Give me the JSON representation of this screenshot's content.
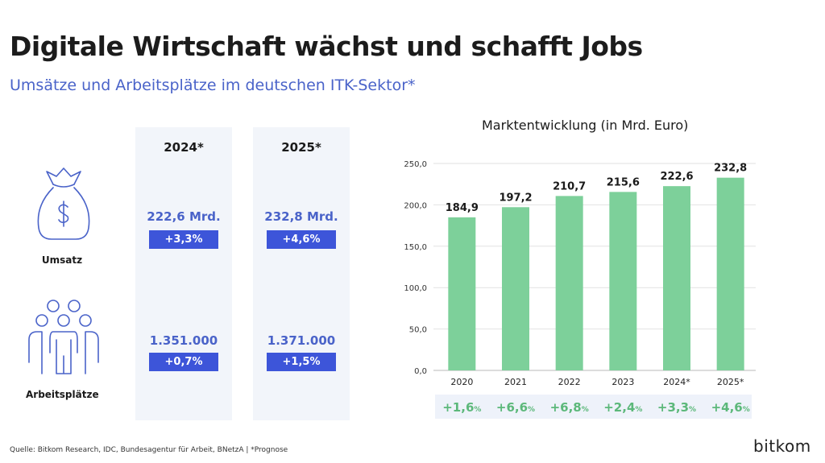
{
  "title": "Digitale Wirtschaft wächst und schafft Jobs",
  "subtitle": "Umsätze und Arbeitsplätze im deutschen ITK-Sektor*",
  "table": {
    "columns": [
      "2024*",
      "2025*"
    ],
    "rows": [
      {
        "label": "Umsatz",
        "values": [
          "222,6 Mrd.",
          "232,8 Mrd."
        ],
        "changes": [
          "+3,3%",
          "+4,6%"
        ]
      },
      {
        "label": "Arbeitsplätze",
        "values": [
          "1.351.000",
          "1.371.000"
        ],
        "changes": [
          "+0,7%",
          "+1,5%"
        ]
      }
    ]
  },
  "chart_data": {
    "type": "bar",
    "title": "Marktentwicklung (in Mrd. Euro)",
    "categories": [
      "2020",
      "2021",
      "2022",
      "2023",
      "2024*",
      "2025*"
    ],
    "values": [
      184.9,
      197.2,
      210.7,
      215.6,
      222.6,
      232.8
    ],
    "value_labels": [
      "184,9",
      "197,2",
      "210,7",
      "215,6",
      "222,6",
      "232,8"
    ],
    "growth": [
      "+1,6",
      "+6,6",
      "+6,8",
      "+2,4",
      "+3,3",
      "+4,6"
    ],
    "growth_unit": "%",
    "ylim": [
      0,
      250
    ],
    "yticks": [
      "0,0",
      "50,0",
      "100,0",
      "150,0",
      "200,0",
      "250,0"
    ],
    "bar_color": "#7dd09a",
    "grid": true
  },
  "footer": "Quelle: Bitkom Research, IDC, Bundesagentur für Arbeit, BNetzA | *Prognose",
  "logo": "bitkom"
}
